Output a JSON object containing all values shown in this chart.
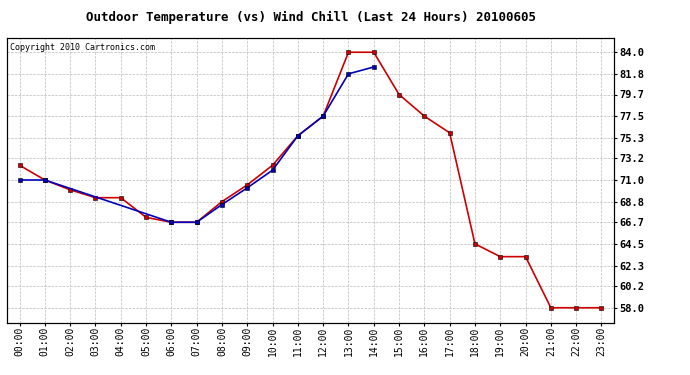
{
  "title": "Outdoor Temperature (vs) Wind Chill (Last 24 Hours) 20100605",
  "copyright": "Copyright 2010 Cartronics.com",
  "hours": [
    "00:00",
    "01:00",
    "02:00",
    "03:00",
    "04:00",
    "05:00",
    "06:00",
    "07:00",
    "08:00",
    "09:00",
    "10:00",
    "11:00",
    "12:00",
    "13:00",
    "14:00",
    "15:00",
    "16:00",
    "17:00",
    "18:00",
    "19:00",
    "20:00",
    "21:00",
    "22:00",
    "23:00"
  ],
  "temp_red": [
    72.5,
    71.0,
    70.0,
    69.2,
    69.2,
    67.2,
    66.7,
    66.7,
    68.8,
    70.5,
    72.5,
    75.5,
    77.5,
    84.0,
    84.0,
    79.7,
    77.5,
    75.8,
    64.5,
    63.2,
    63.2,
    58.0,
    58.0,
    58.0
  ],
  "wind_chill_blue_x": [
    0,
    1,
    6,
    7,
    8,
    9,
    10,
    11,
    12,
    13,
    14
  ],
  "wind_chill_blue_y": [
    71.0,
    71.0,
    66.7,
    66.7,
    68.5,
    70.2,
    72.0,
    75.5,
    77.5,
    81.8,
    82.5
  ],
  "ylim": [
    56.5,
    85.5
  ],
  "yticks": [
    58.0,
    60.2,
    62.3,
    64.5,
    66.7,
    68.8,
    71.0,
    73.2,
    75.3,
    77.5,
    79.7,
    81.8,
    84.0
  ],
  "bg_color": "#ffffff",
  "grid_color": "#bbbbbb",
  "red_color": "#cc0000",
  "blue_color": "#0000bb",
  "marker_size": 3,
  "line_width": 1.2,
  "title_fontsize": 9,
  "copyright_fontsize": 6,
  "tick_fontsize": 7
}
